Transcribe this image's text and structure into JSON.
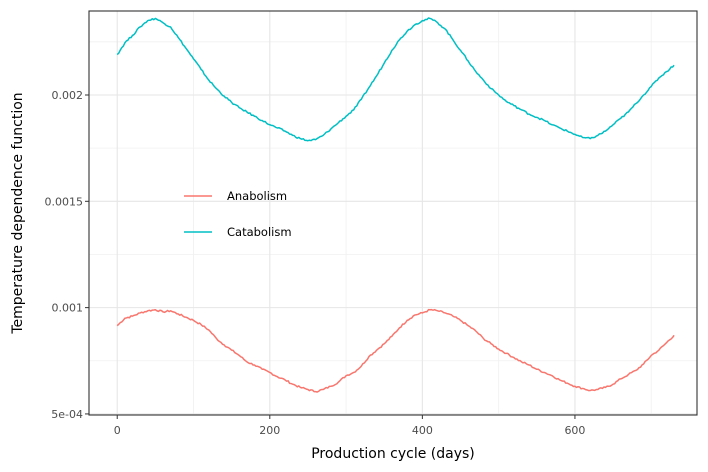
{
  "chart_data": {
    "type": "line",
    "title": "",
    "xlabel": "Production cycle (days)",
    "ylabel": "Temperature dependence function",
    "xlim": [
      -37,
      760
    ],
    "ylim": [
      0.000495,
      0.002395
    ],
    "x_ticks": [
      0,
      200,
      400,
      600
    ],
    "x_tick_labels": [
      "0",
      "200",
      "400",
      "600"
    ],
    "y_ticks": [
      0.0005,
      0.001,
      0.0015,
      0.002
    ],
    "y_tick_labels": [
      "5e-04",
      "0.001",
      "0.0015",
      "0.002"
    ],
    "grid": true,
    "legend_position": "inside-left",
    "series": [
      {
        "name": "Anabolism",
        "color": "#F8766D",
        "x": [
          0,
          10,
          20,
          30,
          40,
          50,
          60,
          70,
          80,
          90,
          100,
          110,
          120,
          130,
          140,
          150,
          160,
          170,
          180,
          190,
          200,
          210,
          220,
          230,
          240,
          250,
          260,
          270,
          280,
          290,
          300,
          310,
          320,
          330,
          340,
          350,
          360,
          370,
          380,
          390,
          400,
          410,
          420,
          430,
          440,
          450,
          460,
          470,
          480,
          490,
          500,
          510,
          520,
          530,
          540,
          550,
          560,
          570,
          580,
          590,
          600,
          610,
          620,
          630,
          640,
          650,
          660,
          670,
          680,
          690,
          700,
          710,
          720,
          730
        ],
        "values": [
          0.000915,
          0.00095,
          0.00096,
          0.000975,
          0.000985,
          0.00099,
          0.00098,
          0.000985,
          0.00097,
          0.000955,
          0.00094,
          0.00092,
          0.000895,
          0.000855,
          0.000825,
          0.0008,
          0.000775,
          0.000745,
          0.00073,
          0.00071,
          0.000695,
          0.000675,
          0.00066,
          0.00064,
          0.000625,
          0.000615,
          0.000605,
          0.000615,
          0.00063,
          0.00065,
          0.00068,
          0.000695,
          0.000725,
          0.00077,
          0.0008,
          0.00083,
          0.000865,
          0.000905,
          0.00094,
          0.000965,
          0.000975,
          0.00099,
          0.000985,
          0.000975,
          0.00096,
          0.00094,
          0.000915,
          0.00089,
          0.000855,
          0.00083,
          0.000805,
          0.000785,
          0.000765,
          0.000745,
          0.00073,
          0.00071,
          0.000695,
          0.00068,
          0.00066,
          0.000645,
          0.00063,
          0.00062,
          0.00061,
          0.000615,
          0.000625,
          0.00064,
          0.000665,
          0.000685,
          0.000705,
          0.000735,
          0.000775,
          0.0008,
          0.000835,
          0.00087
        ]
      },
      {
        "name": "Catabolism",
        "color": "#00BFC4",
        "x": [
          0,
          10,
          20,
          30,
          40,
          50,
          60,
          70,
          80,
          90,
          100,
          110,
          120,
          130,
          140,
          150,
          160,
          170,
          180,
          190,
          200,
          210,
          220,
          230,
          240,
          250,
          260,
          270,
          280,
          290,
          300,
          310,
          320,
          330,
          340,
          350,
          360,
          370,
          380,
          390,
          400,
          410,
          420,
          430,
          440,
          450,
          460,
          470,
          480,
          490,
          500,
          510,
          520,
          530,
          540,
          550,
          560,
          570,
          580,
          590,
          600,
          610,
          620,
          630,
          640,
          650,
          660,
          670,
          680,
          690,
          700,
          710,
          720,
          730
        ],
        "values": [
          0.00219,
          0.002245,
          0.00228,
          0.00232,
          0.00235,
          0.00236,
          0.00234,
          0.00232,
          0.00227,
          0.00222,
          0.00217,
          0.00212,
          0.00207,
          0.00203,
          0.001995,
          0.001965,
          0.00194,
          0.00192,
          0.0019,
          0.00188,
          0.00186,
          0.001845,
          0.00183,
          0.00181,
          0.001795,
          0.001785,
          0.00179,
          0.00181,
          0.00184,
          0.00187,
          0.0019,
          0.00193,
          0.00198,
          0.002035,
          0.00209,
          0.00215,
          0.00221,
          0.00226,
          0.0023,
          0.00233,
          0.00235,
          0.00236,
          0.00234,
          0.00231,
          0.00226,
          0.00221,
          0.00216,
          0.00211,
          0.00207,
          0.00203,
          0.002,
          0.00197,
          0.00195,
          0.00193,
          0.00191,
          0.001895,
          0.00188,
          0.00186,
          0.001845,
          0.00183,
          0.001815,
          0.0018,
          0.001795,
          0.00181,
          0.00183,
          0.00186,
          0.00189,
          0.00192,
          0.00196,
          0.002,
          0.00204,
          0.00208,
          0.00211,
          0.00214
        ]
      }
    ]
  }
}
